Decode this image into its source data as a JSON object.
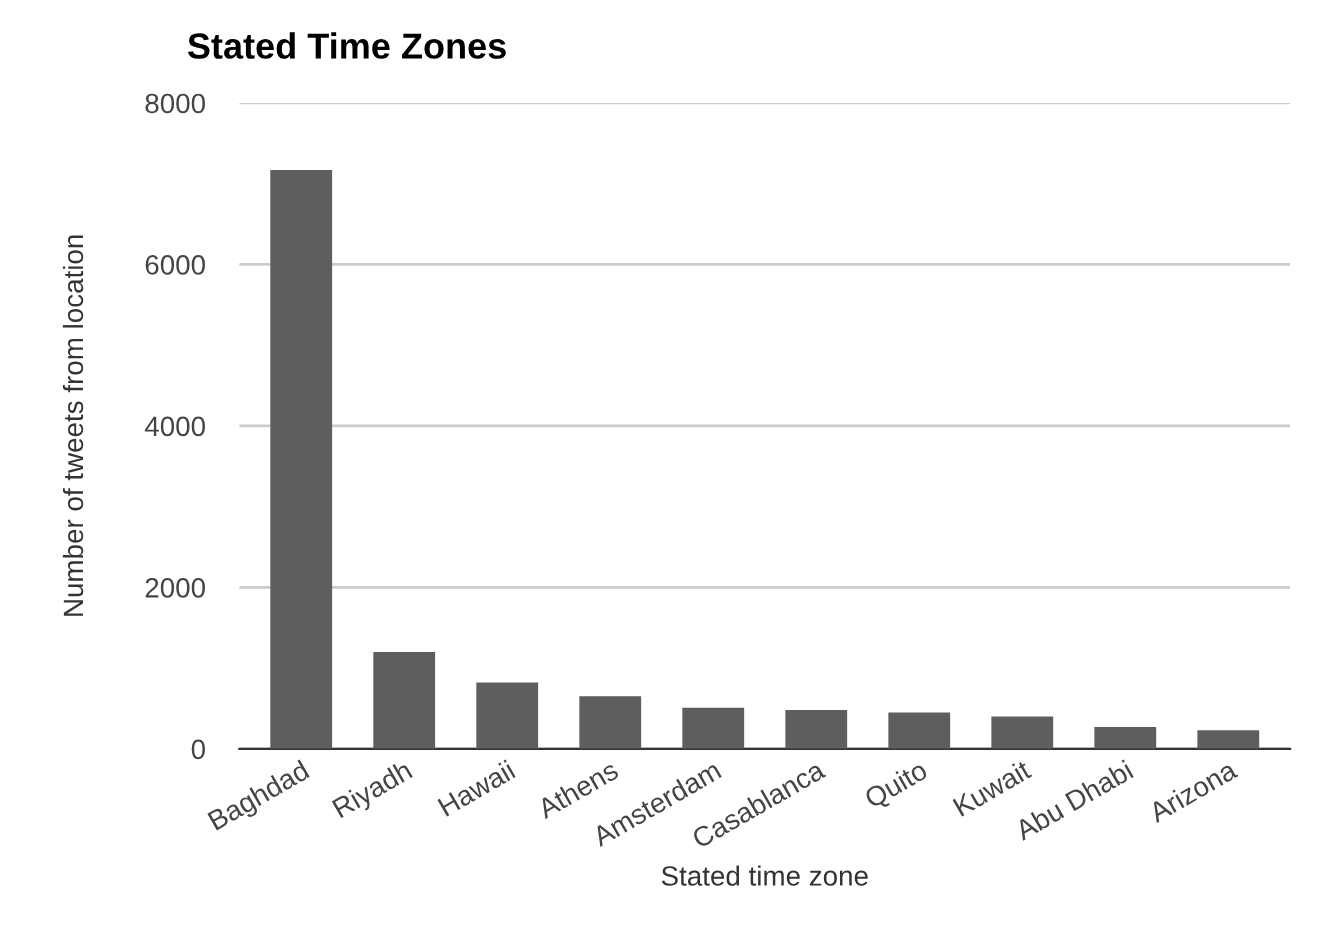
{
  "chart_data": {
    "type": "bar",
    "title": "Stated Time Zones",
    "xlabel": "Stated time zone",
    "ylabel": "Number of tweets from location",
    "categories": [
      "Baghdad",
      "Riyadh",
      "Hawaii",
      "Athens",
      "Amsterdam",
      "Casablanca",
      "Quito",
      "Kuwait",
      "Abu Dhabi",
      "Arizona"
    ],
    "values": [
      7170,
      1200,
      820,
      650,
      510,
      480,
      450,
      400,
      270,
      230
    ],
    "color": "#5e5e5e",
    "ylim": [
      0,
      8000
    ],
    "yticks": [
      0,
      2000,
      4000,
      6000,
      8000
    ],
    "grid": "y"
  }
}
